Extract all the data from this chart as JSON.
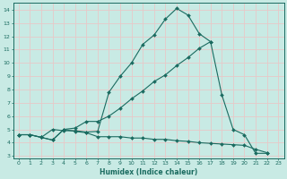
{
  "bg_color": "#c8eae4",
  "grid_color": "#e8c8c8",
  "line_color": "#1a6b60",
  "xlabel": "Humidex (Indice chaleur)",
  "ylim": [
    2.8,
    14.5
  ],
  "xlim": [
    -0.5,
    23.5
  ],
  "yticks": [
    3,
    4,
    5,
    6,
    7,
    8,
    9,
    10,
    11,
    12,
    13,
    14
  ],
  "xticks": [
    0,
    1,
    2,
    3,
    4,
    5,
    6,
    7,
    8,
    9,
    10,
    11,
    12,
    13,
    14,
    15,
    16,
    17,
    18,
    19,
    20,
    21,
    22,
    23
  ],
  "line1_x": [
    0,
    1,
    2,
    3,
    4,
    5,
    6,
    7,
    8,
    9,
    10,
    11,
    12,
    13,
    14,
    15,
    16,
    17,
    18,
    19,
    20,
    21,
    22
  ],
  "line1_y": [
    4.6,
    4.6,
    4.4,
    5.0,
    4.9,
    4.9,
    4.8,
    4.85,
    7.8,
    9.0,
    10.0,
    11.4,
    12.1,
    13.3,
    14.1,
    13.6,
    12.2,
    11.6,
    7.6,
    5.0,
    4.6,
    3.2,
    3.2
  ],
  "line2_x": [
    0,
    1,
    2,
    3,
    4,
    5,
    6,
    7,
    8,
    9,
    10,
    11,
    12,
    13,
    14,
    15,
    16,
    17
  ],
  "line2_y": [
    4.6,
    4.6,
    4.4,
    4.2,
    5.0,
    5.1,
    5.6,
    5.6,
    6.0,
    6.6,
    7.3,
    7.9,
    8.6,
    9.1,
    9.8,
    10.4,
    11.1,
    11.6
  ],
  "line3_x": [
    0,
    1,
    2,
    3,
    4,
    5,
    6,
    7,
    8,
    9,
    10,
    11,
    12,
    13,
    14,
    15,
    16,
    17,
    18,
    19,
    20,
    21,
    22
  ],
  "line3_y": [
    4.6,
    4.6,
    4.4,
    4.2,
    5.0,
    4.85,
    4.75,
    4.45,
    4.45,
    4.45,
    4.35,
    4.35,
    4.25,
    4.25,
    4.15,
    4.1,
    4.0,
    3.95,
    3.9,
    3.85,
    3.8,
    3.5,
    3.25
  ]
}
